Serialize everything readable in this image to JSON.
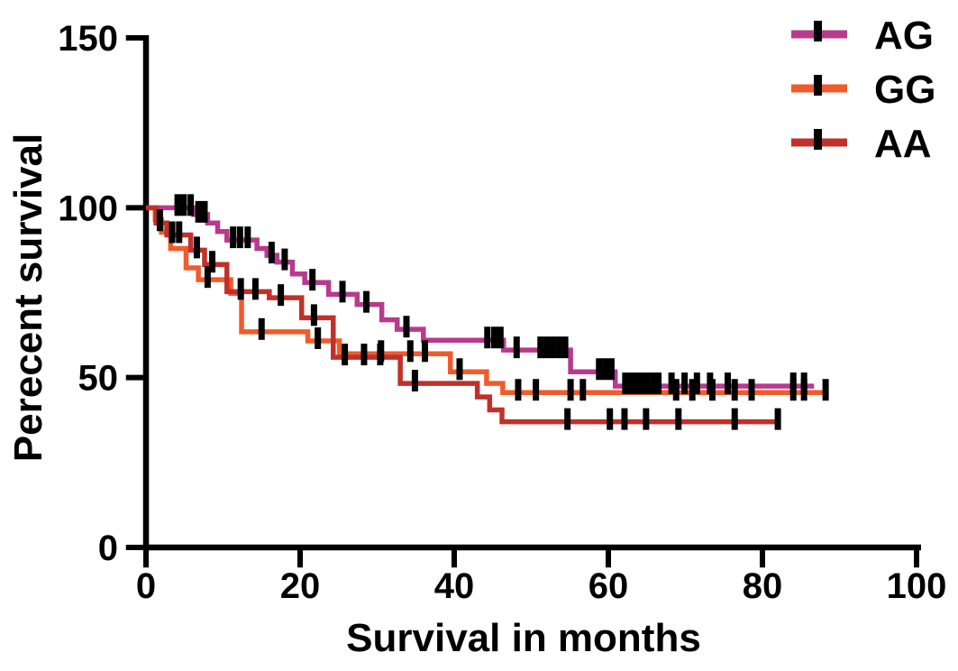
{
  "figure": {
    "background": "#ffffff",
    "text_color": "#000000"
  },
  "chart_data": {
    "type": "line",
    "subtype": "kaplan-meier-step",
    "title": "",
    "xlabel": "Survival in months",
    "ylabel": "Perecent survival",
    "xlim": [
      0,
      100
    ],
    "ylim": [
      0,
      150
    ],
    "xticks": [
      0,
      20,
      40,
      60,
      80,
      100
    ],
    "yticks": [
      0,
      50,
      100,
      150
    ],
    "grid": false,
    "legend_position": "top-right",
    "axis_color": "#000000",
    "censor_mark_color": "#000000",
    "series": [
      {
        "name": "AG",
        "color": "#B83A8E",
        "end_time": 86.7,
        "steps": [
          [
            0,
            100
          ],
          [
            6.2,
            98
          ],
          [
            8,
            95.5
          ],
          [
            9.3,
            93
          ],
          [
            10.5,
            90.5
          ],
          [
            14.4,
            88
          ],
          [
            15.7,
            86
          ],
          [
            17,
            84
          ],
          [
            19,
            80.5
          ],
          [
            20.6,
            78
          ],
          [
            23.7,
            74.5
          ],
          [
            27.4,
            71.5
          ],
          [
            30.6,
            67
          ],
          [
            32.6,
            64.2
          ],
          [
            36,
            61
          ],
          [
            46.4,
            58.1
          ],
          [
            55.1,
            51.7
          ],
          [
            60.9,
            47.5
          ]
        ],
        "censor_times": [
          4.1,
          4.9,
          5.8,
          6.8,
          7.6,
          11.3,
          12.2,
          13.2,
          16.3,
          18,
          21.6,
          25.5,
          28.6,
          33.8,
          44.3,
          45.2,
          46,
          48.1,
          51.2,
          52,
          52.8,
          53.6,
          54.4,
          58.8,
          59.6,
          60.4,
          62.2,
          62.9,
          63.6,
          64.3,
          65,
          65.8,
          66.5,
          68.2,
          69.9,
          71.5,
          73.2,
          75.5,
          84,
          85.4
        ]
      },
      {
        "name": "GG",
        "color": "#F15B2B",
        "end_time": 88.4,
        "steps": [
          [
            0,
            100
          ],
          [
            1.2,
            96.5
          ],
          [
            2,
            92.8
          ],
          [
            3.2,
            88
          ],
          [
            5.2,
            82.3
          ],
          [
            6.8,
            78.8
          ],
          [
            11,
            74.8
          ],
          [
            12.4,
            63.5
          ],
          [
            21,
            60.8
          ],
          [
            25.1,
            57
          ],
          [
            39.5,
            51.7
          ],
          [
            44.2,
            48.3
          ],
          [
            46.3,
            45.6
          ]
        ],
        "censor_times": [
          8,
          15,
          22.3,
          30.5,
          34.3,
          36.2,
          40.7,
          48.3,
          50.6,
          55.1,
          56.7,
          68.8,
          70.9,
          73.5,
          76.4,
          78.6,
          84,
          85.4,
          88.2
        ]
      },
      {
        "name": "AA",
        "color": "#C0312B",
        "end_time": 82.2,
        "steps": [
          [
            0,
            100
          ],
          [
            1.3,
            95.5
          ],
          [
            2.7,
            92
          ],
          [
            5.8,
            87.5
          ],
          [
            7.6,
            83.3
          ],
          [
            10.5,
            75.3
          ],
          [
            16,
            73.5
          ],
          [
            20.2,
            67.6
          ],
          [
            24.3,
            56
          ],
          [
            33,
            48.3
          ],
          [
            43,
            44.3
          ],
          [
            44.6,
            40.5
          ],
          [
            46.2,
            37
          ]
        ],
        "censor_times": [
          1.8,
          3.4,
          4.3,
          6.6,
          8.6,
          12.3,
          14.2,
          17.5,
          21.8,
          25.8,
          28.3,
          30.4,
          34.9,
          54.7,
          60.2,
          62.1,
          64.9,
          69.1,
          76.4,
          82
        ]
      }
    ]
  }
}
